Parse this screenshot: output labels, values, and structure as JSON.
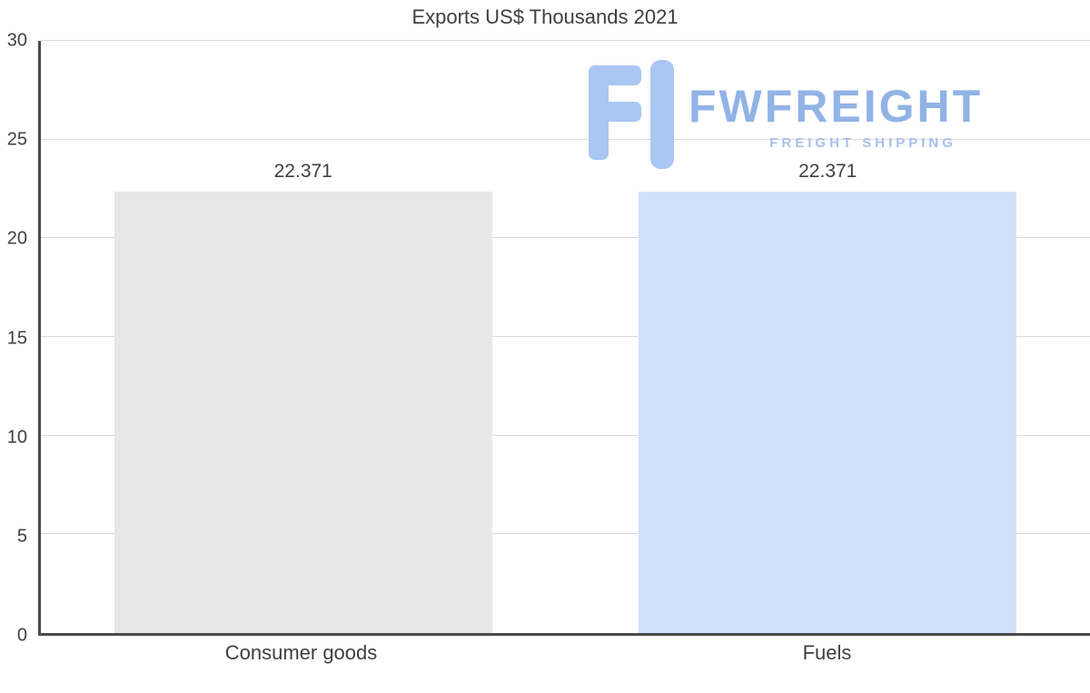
{
  "page": {
    "background": "#ffffff"
  },
  "chart_data": {
    "type": "bar",
    "title": "Exports US$ Thousands 2021",
    "categories": [
      "Consumer goods",
      "Fuels"
    ],
    "values": [
      22.371,
      22.371
    ],
    "value_labels": [
      "22.371",
      "22.371"
    ],
    "bar_colors": [
      "#e7e7e7",
      "#cfe1f8"
    ],
    "xlabel": "",
    "ylabel": "",
    "ylim": [
      0,
      30
    ],
    "yticks": [
      0,
      5,
      10,
      15,
      20,
      25,
      30
    ],
    "grid": true,
    "legend_position": "none",
    "gridline_color": "#d9d9d9",
    "axis_color": "#4b4b4b",
    "text_color": "#3f3f3f"
  },
  "watermark": {
    "brand": "FWFREIGHT",
    "tagline": "FREIGHT SHIPPING",
    "brand_color": "#7ea6e2",
    "tagline_color": "#a9c0ea",
    "icon_color": "#a9c7f2",
    "icon": "fwfreight-logo-icon"
  }
}
